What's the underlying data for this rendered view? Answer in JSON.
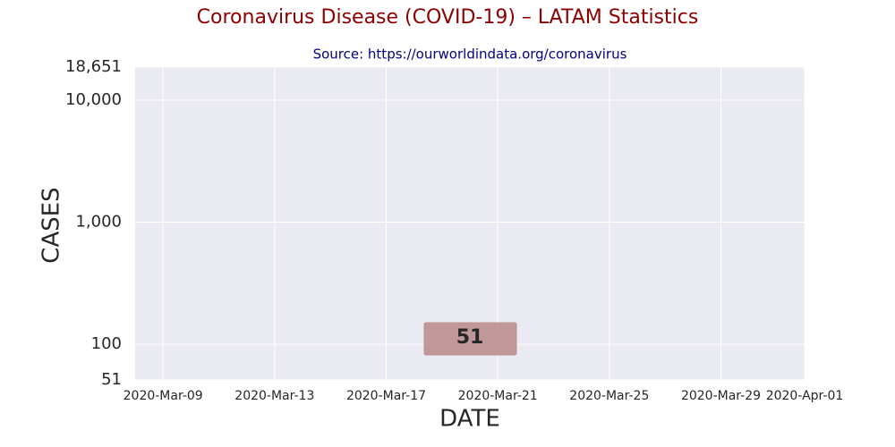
{
  "chart_data": {
    "type": "line",
    "title": "Coronavirus Disease (COVID-19) – LATAM Statistics",
    "subtitle": "Source: https://ourworldindata.org/coronavirus",
    "xlabel": "DATE",
    "ylabel": "CASES",
    "log_y": true,
    "grid": true,
    "background": "#eaeaf2",
    "title_color": "#8b0000",
    "subtitle_color": "#000080",
    "xlim": [
      "2020-03-08",
      "2020-04-01"
    ],
    "xticks": [
      {
        "value": "2020-03-09",
        "label": "2020-Mar-09"
      },
      {
        "value": "2020-03-13",
        "label": "2020-Mar-13"
      },
      {
        "value": "2020-03-17",
        "label": "2020-Mar-17"
      },
      {
        "value": "2020-03-21",
        "label": "2020-Mar-21"
      },
      {
        "value": "2020-03-25",
        "label": "2020-Mar-25"
      },
      {
        "value": "2020-03-29",
        "label": "2020-Mar-29"
      },
      {
        "value": "2020-04-01",
        "label": "2020-Apr-01"
      }
    ],
    "ylim": [
      51,
      18651
    ],
    "yticks": [
      51,
      100,
      {
        "value": 1000,
        "label": "1,000"
      },
      {
        "value": 10000,
        "label": "10,000"
      },
      {
        "value": 18651,
        "label": "18,651"
      }
    ],
    "annotations": [
      {
        "text": "51",
        "color": "#bc8f8f"
      }
    ]
  }
}
